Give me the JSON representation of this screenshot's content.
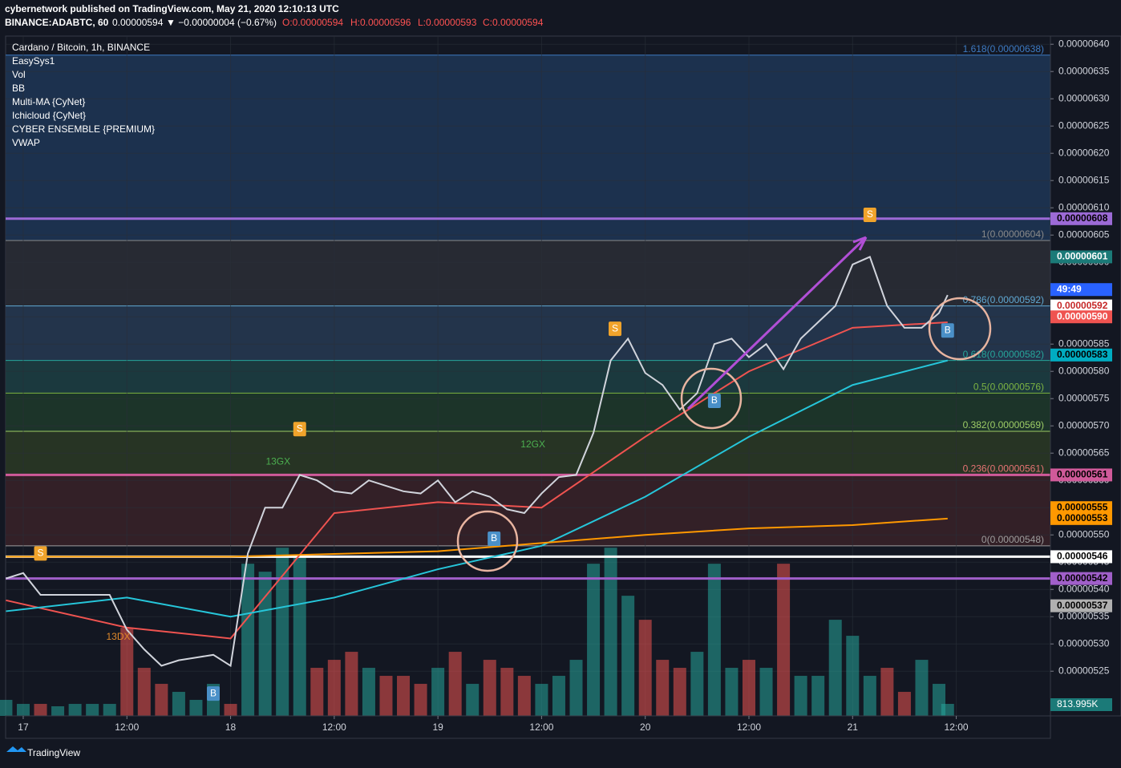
{
  "header": {
    "publisher": "cybernetwork published on TradingView.com, May 21, 2020 12:10:13 UTC",
    "symbol": "BINANCE:ADABTC, 60",
    "last": "0.00000594",
    "change": "▼ −0.00000004 (−0.67%)",
    "ohlc": [
      "O:0.00000594",
      "H:0.00000596",
      "L:0.00000593",
      "C:0.00000594"
    ]
  },
  "legend": {
    "title": "Cardano / Bitcoin, 1h, BINANCE",
    "indicators": [
      "EasySys1",
      "Vol",
      "BB",
      "Multi-MA {CyNet}",
      "Ichicloud {CyNet}",
      "CYBER ENSEMBLE {PREMIUM}",
      "VWAP"
    ]
  },
  "footer": "TradingView",
  "chart_data": {
    "type": "line",
    "x": [
      -2,
      0,
      2,
      4,
      6,
      8,
      10,
      12,
      14,
      16,
      18,
      20,
      22,
      24,
      26,
      28,
      30,
      32,
      34,
      36,
      38,
      40,
      42,
      44,
      46,
      48,
      50,
      52,
      54,
      56,
      58,
      60,
      62,
      64,
      66,
      68,
      70,
      72,
      74,
      76,
      78,
      80,
      82,
      84,
      86,
      88,
      90,
      92,
      94,
      96,
      98,
      100,
      102,
      104,
      106,
      107
    ],
    "xlim": [
      -2.04,
      118.9
    ],
    "xticks": [
      {
        "value": 0,
        "label": "17"
      },
      {
        "value": 12,
        "label": "12:00"
      },
      {
        "value": 24,
        "label": "18"
      },
      {
        "value": 36,
        "label": "12:00"
      },
      {
        "value": 48,
        "label": "19"
      },
      {
        "value": 60,
        "label": "12:00"
      },
      {
        "value": 72,
        "label": "20"
      },
      {
        "value": 84,
        "label": "12:00"
      },
      {
        "value": 96,
        "label": "21"
      },
      {
        "value": 108,
        "label": "12:00"
      }
    ],
    "ylim": [
      5.168e-06,
      6.415e-06
    ],
    "yticks": [
      {
        "value": 6.4e-06,
        "label": "0.00000640"
      },
      {
        "value": 6.35e-06,
        "label": "0.00000635"
      },
      {
        "value": 6.3e-06,
        "label": "0.00000630"
      },
      {
        "value": 6.25e-06,
        "label": "0.00000625"
      },
      {
        "value": 6.2e-06,
        "label": "0.00000620"
      },
      {
        "value": 6.15e-06,
        "label": "0.00000615"
      },
      {
        "value": 6.1e-06,
        "label": "0.00000610"
      },
      {
        "value": 6.05e-06,
        "label": "0.00000605"
      },
      {
        "value": 6e-06,
        "label": "0.00000600"
      },
      {
        "value": 5.95e-06,
        "label": "0.00000595"
      },
      {
        "value": 5.9e-06,
        "label": "0.00000590"
      },
      {
        "value": 5.85e-06,
        "label": "0.00000585"
      },
      {
        "value": 5.8e-06,
        "label": "0.00000580"
      },
      {
        "value": 5.75e-06,
        "label": "0.00000575"
      },
      {
        "value": 5.7e-06,
        "label": "0.00000570"
      },
      {
        "value": 5.65e-06,
        "label": "0.00000565"
      },
      {
        "value": 5.6e-06,
        "label": "0.00000560"
      },
      {
        "value": 5.55e-06,
        "label": "0.00000555"
      },
      {
        "value": 5.5e-06,
        "label": "0.00000550"
      },
      {
        "value": 5.45e-06,
        "label": "0.00000545"
      },
      {
        "value": 5.4e-06,
        "label": "0.00000540"
      },
      {
        "value": 5.35e-06,
        "label": "0.00000535"
      },
      {
        "value": 5.3e-06,
        "label": "0.00000530"
      },
      {
        "value": 5.25e-06,
        "label": "0.00000525"
      }
    ],
    "grid": true,
    "series": [
      {
        "name": "Close",
        "color": "#d1d4dc",
        "values": [
          5.42e-06,
          5.43e-06,
          5.39e-06,
          5.39e-06,
          5.39e-06,
          5.39e-06,
          5.39e-06,
          5.326e-06,
          5.29e-06,
          5.26e-06,
          5.27e-06,
          5.275e-06,
          5.28e-06,
          5.26e-06,
          5.466e-06,
          5.55e-06,
          5.55e-06,
          5.61e-06,
          5.6e-06,
          5.58e-06,
          5.576e-06,
          5.6e-06,
          5.59e-06,
          5.58e-06,
          5.576e-06,
          5.6e-06,
          5.56e-06,
          5.58e-06,
          5.57e-06,
          5.547e-06,
          5.54e-06,
          5.576e-06,
          5.606e-06,
          5.61e-06,
          5.687e-06,
          5.82e-06,
          5.86e-06,
          5.797e-06,
          5.775e-06,
          5.73e-06,
          5.76e-06,
          5.85e-06,
          5.86e-06,
          5.826e-06,
          5.85e-06,
          5.804e-06,
          5.86e-06,
          5.89e-06,
          5.92e-06,
          5.996e-06,
          6.01e-06,
          5.92e-06,
          5.88e-06,
          5.88e-06,
          5.907e-06,
          5.94e-06
        ]
      }
    ],
    "moving_averages": [
      {
        "color": "#ef5350",
        "x": [
          -2,
          12,
          24,
          36,
          48,
          60,
          72,
          84,
          96,
          107
        ],
        "values": [
          5.38e-06,
          5.33e-06,
          5.31e-06,
          5.54e-06,
          5.56e-06,
          5.55e-06,
          5.68e-06,
          5.8e-06,
          5.88e-06,
          5.89e-06
        ]
      },
      {
        "color": "#26c6da",
        "x": [
          -2,
          12,
          24,
          36,
          48,
          60,
          72,
          84,
          96,
          107
        ],
        "values": [
          5.36e-06,
          5.385e-06,
          5.35e-06,
          5.385e-06,
          5.437e-06,
          5.48e-06,
          5.57e-06,
          5.68e-06,
          5.775e-06,
          5.82e-06
        ]
      },
      {
        "color": "#ff9800",
        "x": [
          -2,
          12,
          24,
          36,
          48,
          60,
          72,
          84,
          96,
          107
        ],
        "values": [
          5.46e-06,
          5.46e-06,
          5.46e-06,
          5.465e-06,
          5.47e-06,
          5.485e-06,
          5.5e-06,
          5.512e-06,
          5.518e-06,
          5.53e-06
        ]
      }
    ],
    "volume": {
      "color_up": "#26a69a",
      "color_down": "#ef5350",
      "vlim": [
        0,
        15000
      ],
      "values": [
        1086,
        814,
        814,
        652,
        814,
        814,
        814,
        5973,
        3258,
        2172,
        1629,
        1086,
        2172,
        814,
        10317,
        9774,
        11403,
        10860,
        3258,
        3801,
        4344,
        3258,
        2715,
        2715,
        2172,
        3258,
        4344,
        2172,
        3801,
        3258,
        2715,
        2172,
        2715,
        3801,
        10317,
        11403,
        8145,
        6516,
        3801,
        3258,
        4344,
        10317,
        3258,
        3801,
        3258,
        10317,
        2715,
        2715,
        6516,
        5430,
        2715,
        3258,
        1629,
        3801,
        2172,
        813.995
      ]
    },
    "fib_levels": [
      {
        "label": "1.618(0.00000638)",
        "value": 6.38e-06,
        "color": "#3d7ac2"
      },
      {
        "label": "1(0.00000604)",
        "value": 6.04e-06,
        "color": "#8a8a8a"
      },
      {
        "label": "0.786(0.00000592)",
        "value": 5.92e-06,
        "color": "#5fa8d3"
      },
      {
        "label": "0.618(0.00000582)",
        "value": 5.82e-06,
        "color": "#26a69a"
      },
      {
        "label": "0.5(0.00000576)",
        "value": 5.76e-06,
        "color": "#7cb342"
      },
      {
        "label": "0.382(0.00000569)",
        "value": 5.69e-06,
        "color": "#9ccc65"
      },
      {
        "label": "0.236(0.00000561)",
        "value": 5.61e-06,
        "color": "#e57373"
      },
      {
        "label": "0(0.00000548)",
        "value": 5.48e-06,
        "color": "#9e9e9e"
      }
    ],
    "fib_colors": [
      "#1f3656",
      "#2b2e36",
      "#273a52",
      "#1d3f43",
      "#1f3a2a",
      "#2c3a25",
      "#3a2228"
    ],
    "levels": [
      {
        "value": 6.08e-06,
        "color": "#9c6ad6"
      },
      {
        "value": 5.61e-06,
        "color": "#d05a9a"
      },
      {
        "value": 5.46e-06,
        "color": "#ffffff"
      },
      {
        "value": 5.42e-06,
        "color": "#a05fc9"
      }
    ],
    "price_labels": [
      {
        "label": "0.00000608",
        "value": 6.08e-06,
        "color": "#9c6ad6",
        "text_color": "#000000"
      },
      {
        "label": "0.00000601",
        "value": 6.01e-06,
        "color": "#1b7a78",
        "text_color": "#ffffff"
      },
      {
        "label": "49:49",
        "value": 5.95e-06,
        "color": "#2962ff",
        "text_color": "#ffffff"
      },
      {
        "label": "0.00000592",
        "value": 5.92e-06,
        "color": "#ffffff",
        "text_color": "#c62828"
      },
      {
        "label": "0.00000590",
        "value": 5.9e-06,
        "color": "#ef5350",
        "text_color": "#ffffff"
      },
      {
        "label": "0.00000583",
        "value": 5.83e-06,
        "color": "#00acc1",
        "text_color": "#000000"
      },
      {
        "label": "0.00000561",
        "value": 5.61e-06,
        "color": "#d05a9a",
        "text_color": "#000000"
      },
      {
        "label": "0.00000555",
        "value": 5.55e-06,
        "color": "#ff9800",
        "text_color": "#000000"
      },
      {
        "label": "0.00000553",
        "value": 5.53e-06,
        "color": "#ff9800",
        "text_color": "#000000"
      },
      {
        "label": "0.00000546",
        "value": 5.46e-06,
        "color": "#ffffff",
        "text_color": "#000000"
      },
      {
        "label": "0.00000542",
        "value": 5.42e-06,
        "color": "#a05fc9",
        "text_color": "#000000"
      },
      {
        "label": "0.00000537",
        "value": 5.37e-06,
        "color": "#b0b0b0",
        "text_color": "#000000"
      }
    ],
    "volume_label": "813.995K",
    "signals": [
      {
        "text": "S",
        "x": 2,
        "value": 5.466e-06,
        "color": "#f0a32b"
      },
      {
        "text": "S",
        "x": 32,
        "value": 5.694e-06,
        "color": "#f0a32b"
      },
      {
        "text": "S",
        "x": 68.5,
        "value": 5.878e-06,
        "color": "#f0a32b"
      },
      {
        "text": "S",
        "x": 98,
        "value": 6.087e-06,
        "color": "#f0a32b"
      },
      {
        "text": "B",
        "x": 22,
        "value": 5.209e-06,
        "color": "#4a90c8"
      },
      {
        "text": "B",
        "x": 54.5,
        "value": 5.493e-06,
        "color": "#4a90c8"
      },
      {
        "text": "B",
        "x": 80,
        "value": 5.746e-06,
        "color": "#4a90c8"
      },
      {
        "text": "B",
        "x": 107,
        "value": 5.875e-06,
        "color": "#4a90c8"
      }
    ],
    "annotations": [
      {
        "text": "13DX",
        "x": 11,
        "value": 5.312e-06,
        "color": "#e0892b"
      },
      {
        "text": "13GX",
        "x": 29.5,
        "value": 5.634e-06,
        "color": "#4caf50"
      },
      {
        "text": "12GX",
        "x": 59,
        "value": 5.665e-06,
        "color": "#4caf50"
      }
    ]
  }
}
